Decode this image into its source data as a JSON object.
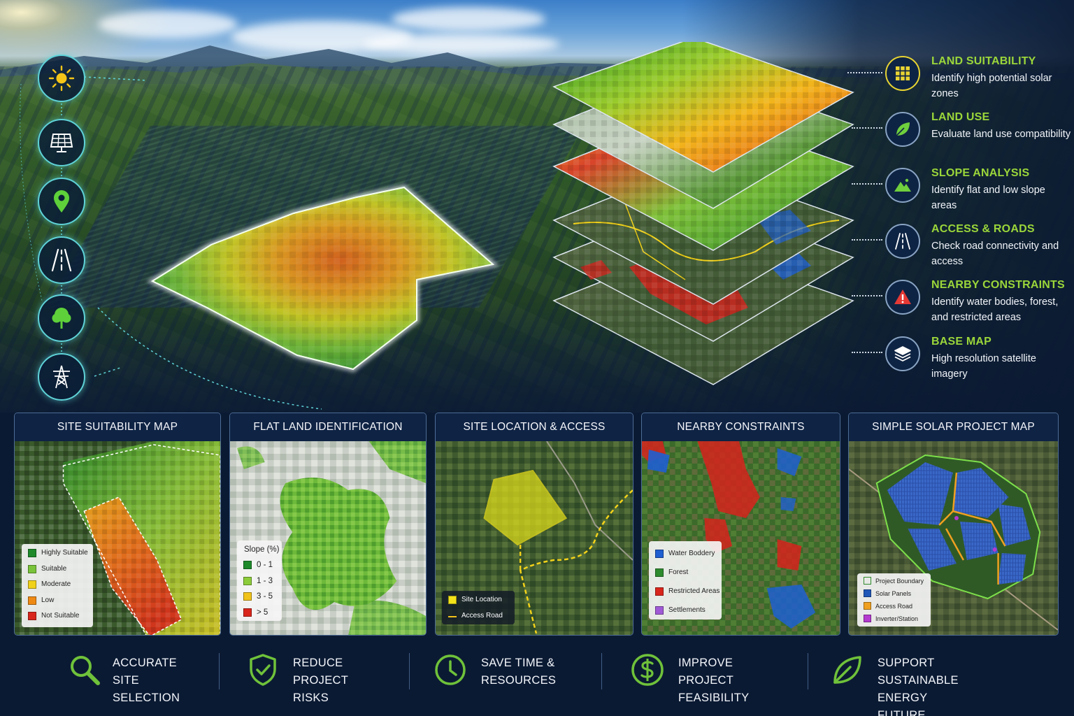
{
  "layers": [
    {
      "title": "LAND SUITABILITY",
      "desc": "Identify high potential solar zones",
      "icon": "grid-icon",
      "color": "#e8d432"
    },
    {
      "title": "LAND USE",
      "desc": "Evaluate land use compatibility",
      "icon": "leaf-icon",
      "color": "#6fcf3d"
    },
    {
      "title": "SLOPE ANALYSIS",
      "desc": "Identify flat and low slope areas",
      "icon": "mountain-icon",
      "color": "#6fcf3d"
    },
    {
      "title": "ACCESS & ROADS",
      "desc": "Check road connectivity and access",
      "icon": "road-icon",
      "color": "#ffffff"
    },
    {
      "title": "NEARBY CONSTRAINTS",
      "desc": "Identify water bodies, forest, and restricted areas",
      "icon": "warning-icon",
      "color": "#e53935"
    },
    {
      "title": "BASE MAP",
      "desc": "High resolution satellite imagery",
      "icon": "layers-icon",
      "color": "#ffffff"
    }
  ],
  "rail_icons": [
    "sun-icon",
    "solar-panel-icon",
    "location-pin-icon",
    "road-icon",
    "tree-icon",
    "power-tower-icon"
  ],
  "panels": [
    {
      "title": "SITE SUITABILITY MAP",
      "legend": [
        {
          "label": "Highly Suitable",
          "color": "#1e8a2a"
        },
        {
          "label": "Suitable",
          "color": "#79c43a"
        },
        {
          "label": "Moderate",
          "color": "#f1d21a"
        },
        {
          "label": "Low",
          "color": "#ee8a14"
        },
        {
          "label": "Not Suitable",
          "color": "#d9261c"
        }
      ]
    },
    {
      "title": "FLAT LAND IDENTIFICATION",
      "legend_title": "Slope (%)",
      "legend": [
        {
          "label": "0 - 1",
          "color": "#1e8a2a"
        },
        {
          "label": "1 - 3",
          "color": "#8ccc3a"
        },
        {
          "label": "3 - 5",
          "color": "#f1c21a"
        },
        {
          "label": "> 5",
          "color": "#d9261c"
        }
      ]
    },
    {
      "title": "SITE LOCATION & ACCESS",
      "legend": [
        {
          "label": "Site Location",
          "color": "#f3e21a"
        },
        {
          "label": "Access Road",
          "color": "#f3c21a"
        }
      ]
    },
    {
      "title": "NEARBY CONSTRAINTS",
      "legend": [
        {
          "label": "Water Boddery",
          "color": "#1f5fd1"
        },
        {
          "label": "Forest",
          "color": "#2e8b2e"
        },
        {
          "label": "Restricted Areas",
          "color": "#d9261c"
        },
        {
          "label": "Settlements",
          "color": "#a05ad6"
        }
      ]
    },
    {
      "title": "SIMPLE SOLAR PROJECT MAP",
      "legend": [
        {
          "label": "Project Boundary",
          "color": "#ffffff"
        },
        {
          "label": "Solar Panels",
          "color": "#2057b8"
        },
        {
          "label": "Access Road",
          "color": "#f0a020"
        },
        {
          "label": "Inverter/Station",
          "color": "#b43ad0"
        }
      ]
    }
  ],
  "benefits": [
    {
      "label": "ACCURATE SITE\nSELECTION",
      "icon": "magnifier-icon"
    },
    {
      "label": "REDUCE PROJECT\nRISKS",
      "icon": "shield-check-icon"
    },
    {
      "label": "SAVE TIME &\nRESOURCES",
      "icon": "clock-icon"
    },
    {
      "label": "IMPROVE PROJECT\nFEASIBILITY",
      "icon": "dollar-icon"
    },
    {
      "label": "SUPPORT SUSTAINABLE\nENERGY FUTURE",
      "icon": "leaf-icon"
    }
  ],
  "colors": {
    "accent_green": "#9bd63a",
    "rail_glow": "#5fd3d8",
    "background": "#0b1a33"
  }
}
